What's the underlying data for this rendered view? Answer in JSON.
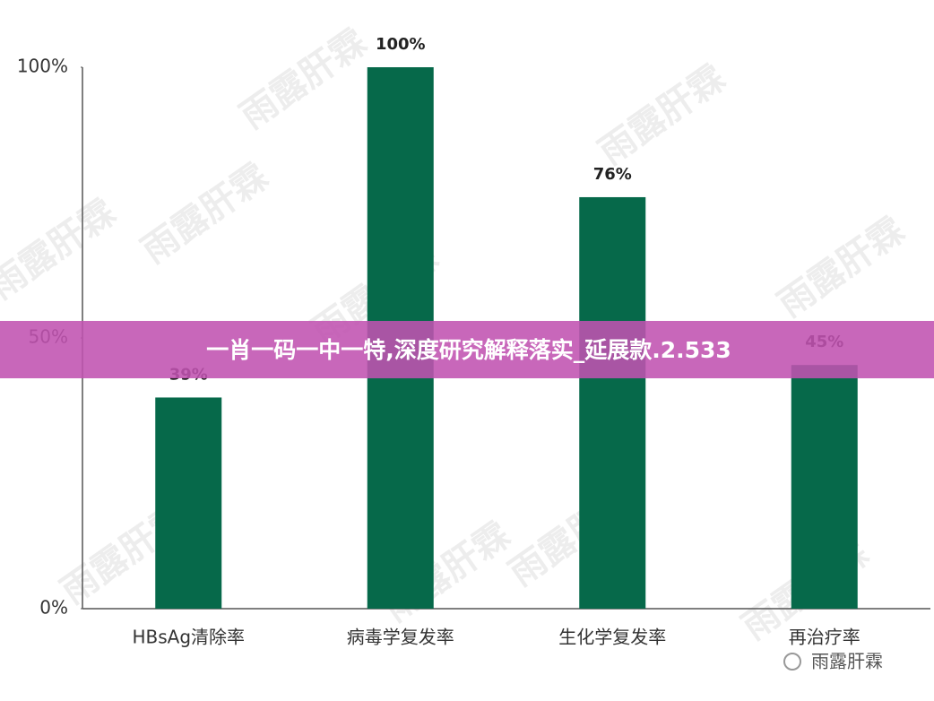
{
  "chart_data": {
    "type": "bar",
    "categories": [
      "HBsAg清除率",
      "病毒学复发率",
      "生化学复发率",
      "再治疗率"
    ],
    "values": [
      39,
      100,
      76,
      45
    ],
    "value_labels": [
      "39%",
      "100%",
      "76%",
      "45%"
    ],
    "color": "#06694a",
    "ylim": [
      0,
      100
    ],
    "yticks": [
      {
        "value": 0,
        "label": "0%"
      },
      {
        "value": 50,
        "label": "50%"
      },
      {
        "value": 100,
        "label": "100%"
      }
    ]
  },
  "banner": "一肖一码一中一特,深度研究解释落实_延展款.2.533",
  "watermark": "雨露肝霖"
}
